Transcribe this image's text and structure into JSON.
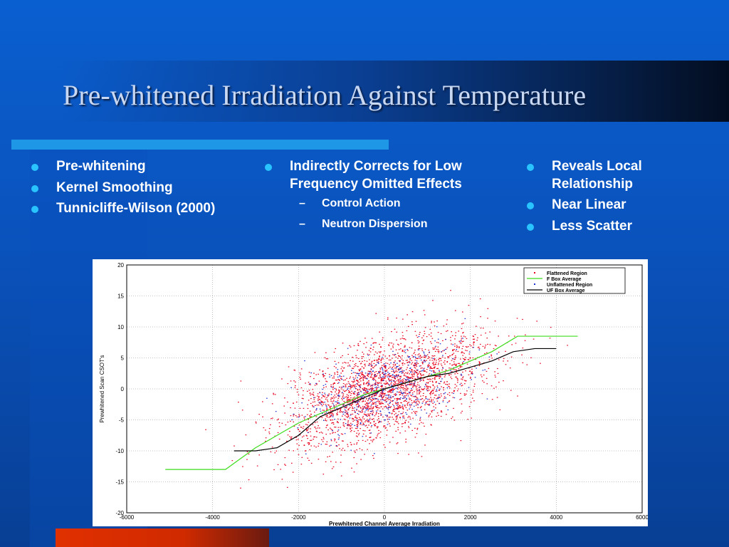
{
  "slide": {
    "title": "Pre-whitened Irradiation Against Temperature",
    "columns": [
      {
        "items": [
          {
            "text": "Pre-whitening",
            "level": 1
          },
          {
            "text": "Kernel Smoothing",
            "level": 1
          },
          {
            "text": "Tunnicliffe-Wilson (2000)",
            "level": 1
          }
        ]
      },
      {
        "items": [
          {
            "text": "Indirectly Corrects for Low Frequency Omitted Effects",
            "level": 1
          },
          {
            "text": "Control Action",
            "level": 2
          },
          {
            "text": "Neutron Dispersion",
            "level": 2
          }
        ]
      },
      {
        "items": [
          {
            "text": "Reveals Local Relationship",
            "level": 1
          },
          {
            "text": "Near Linear",
            "level": 1
          },
          {
            "text": "Less Scatter",
            "level": 1
          }
        ]
      }
    ],
    "colors": {
      "bullet": "#29c4ff",
      "accent_bar": "#1e98e6",
      "bottom_bar": "#e03000"
    }
  },
  "chart_data": {
    "type": "scatter",
    "xlabel": "Prewhitened Channel Average Irradiation",
    "ylabel": "Prewhitened Scan CSOT's",
    "xlim": [
      -6000,
      6000
    ],
    "ylim": [
      -20,
      20
    ],
    "xticks": [
      "-6000",
      "-4000",
      "-2000",
      "0",
      "2000",
      "4000",
      "6000"
    ],
    "yticks": [
      "20",
      "15",
      "10",
      "5",
      "0",
      "-5",
      "-10",
      "-15",
      "-20"
    ],
    "grid": true,
    "legend_position": "top-right",
    "legend": [
      "Flattened Region",
      "F Box Average",
      "Unflattened Region",
      "UF Box Average"
    ],
    "series": [
      {
        "name": "Flattened Region",
        "kind": "points",
        "color": "#e8001c",
        "count": 2600,
        "slope": 0.0022,
        "spread_x": 1200,
        "spread_y": 3.8
      },
      {
        "name": "F Box Average",
        "kind": "line",
        "color": "#3ddc1c",
        "x": [
          -5100,
          -3700,
          -3000,
          -2500,
          -2000,
          -1500,
          -1000,
          -500,
          0,
          500,
          1000,
          1500,
          2000,
          2500,
          3100,
          3600,
          4500
        ],
        "y": [
          -13,
          -13,
          -9.5,
          -7.5,
          -5.5,
          -4,
          -2.5,
          -1,
          0,
          1,
          2,
          3,
          4.5,
          6,
          8.5,
          8.5,
          8.5
        ]
      },
      {
        "name": "Unflattened Region",
        "kind": "points",
        "color": "#1a2fd0",
        "count": 500,
        "slope": 0.0018,
        "spread_x": 900,
        "spread_y": 3.0
      },
      {
        "name": "UF Box Average",
        "kind": "line",
        "color": "#000000",
        "x": [
          -3500,
          -3000,
          -2500,
          -2000,
          -1500,
          -1000,
          -500,
          0,
          500,
          1000,
          1500,
          2000,
          2500,
          3000,
          3500,
          4000
        ],
        "y": [
          -10,
          -10,
          -9.5,
          -7.5,
          -4.5,
          -3,
          -1.5,
          0,
          1,
          2,
          2.5,
          3.5,
          4.5,
          6,
          6.5,
          6.5
        ]
      }
    ]
  }
}
